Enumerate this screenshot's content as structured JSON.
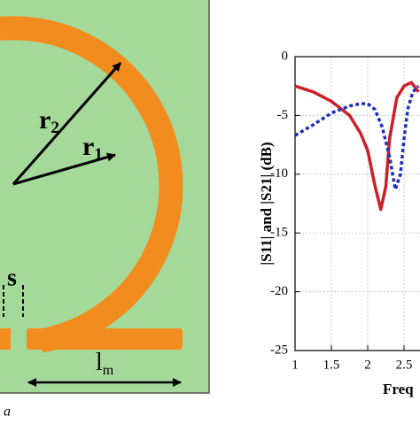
{
  "diagram": {
    "labels": [
      {
        "text": "r",
        "sub": "2"
      },
      {
        "text": "r",
        "sub": "1"
      },
      {
        "text": "s"
      },
      {
        "text": "l",
        "sub": "m"
      }
    ],
    "caption": "a"
  },
  "chart_data": {
    "type": "line",
    "y_label": "|S11| and |S21| (dB)",
    "x_label": "Freq",
    "xlim": [
      1,
      3
    ],
    "xticks": [
      1,
      1.5,
      2,
      2.5
    ],
    "ylim": [
      -25,
      0
    ],
    "yticks": [
      0,
      -5,
      -10,
      -15,
      -20,
      -25
    ],
    "grid": true,
    "series": [
      {
        "name": "S11",
        "color": "#cc1f2a",
        "style": "solid",
        "x": [
          1,
          1.25,
          1.5,
          1.75,
          1.9,
          2.0,
          2.1,
          2.18,
          2.25,
          2.3,
          2.4,
          2.5,
          2.6,
          2.7
        ],
        "values": [
          -2.5,
          -3,
          -3.8,
          -5,
          -6.5,
          -8,
          -11,
          -13,
          -11,
          -7,
          -3.5,
          -2.5,
          -2.2,
          -3
        ]
      },
      {
        "name": "S21",
        "color": "#1f2fb8",
        "style": "dotted",
        "x": [
          1,
          1.25,
          1.5,
          1.75,
          1.9,
          2.0,
          2.1,
          2.2,
          2.3,
          2.38,
          2.45,
          2.5,
          2.55,
          2.62,
          2.7
        ],
        "values": [
          -6.7,
          -5.8,
          -4.8,
          -4.2,
          -4,
          -4,
          -4.5,
          -6,
          -8.5,
          -11.3,
          -10,
          -7,
          -4.5,
          -3,
          -2.5
        ]
      }
    ]
  }
}
